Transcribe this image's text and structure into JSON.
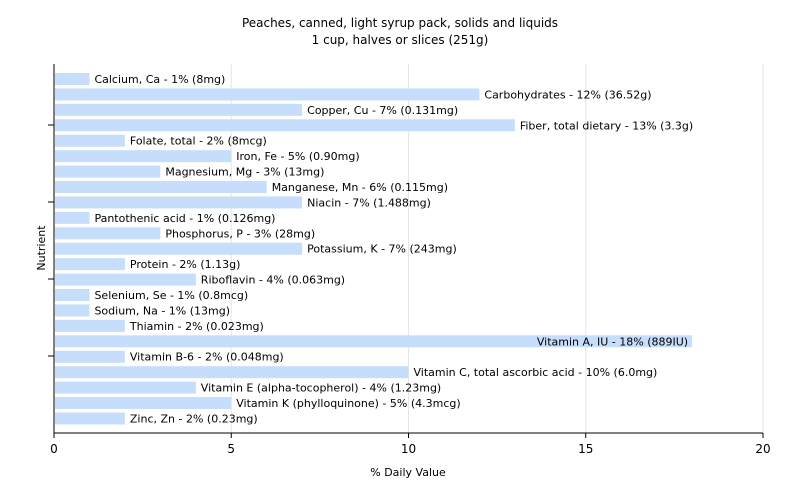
{
  "chart_data": {
    "type": "bar",
    "orientation": "horizontal",
    "title": "Peaches, canned, light syrup pack, solids and liquids",
    "subtitle": "1 cup, halves or slices (251g)",
    "xlabel": "% Daily Value",
    "ylabel": "Nutrient",
    "xlim": [
      0,
      20
    ],
    "xticks": [
      "0",
      "5",
      "10",
      "15",
      "20"
    ],
    "grid": true,
    "bar_color": "#c6defb",
    "categories": [
      "Calcium, Ca",
      "Carbohydrates",
      "Copper, Cu",
      "Fiber, total dietary",
      "Folate, total",
      "Iron, Fe",
      "Magnesium, Mg",
      "Manganese, Mn",
      "Niacin",
      "Pantothenic acid",
      "Phosphorus, P",
      "Potassium, K",
      "Protein",
      "Riboflavin",
      "Selenium, Se",
      "Sodium, Na",
      "Thiamin",
      "Vitamin A, IU",
      "Vitamin B-6",
      "Vitamin C, total ascorbic acid",
      "Vitamin E (alpha-tocopherol)",
      "Vitamin K (phylloquinone)",
      "Zinc, Zn"
    ],
    "values": [
      1,
      12,
      7,
      13,
      2,
      5,
      3,
      6,
      7,
      1,
      3,
      7,
      2,
      4,
      1,
      1,
      2,
      18,
      2,
      10,
      4,
      5,
      2
    ],
    "labels": [
      "Calcium, Ca - 1% (8mg)",
      "Carbohydrates - 12% (36.52g)",
      "Copper, Cu - 7% (0.131mg)",
      "Fiber, total dietary - 13% (3.3g)",
      "Folate, total - 2% (8mcg)",
      "Iron, Fe - 5% (0.90mg)",
      "Magnesium, Mg - 3% (13mg)",
      "Manganese, Mn - 6% (0.115mg)",
      "Niacin - 7% (1.488mg)",
      "Pantothenic acid - 1% (0.126mg)",
      "Phosphorus, P - 3% (28mg)",
      "Potassium, K - 7% (243mg)",
      "Protein - 2% (1.13g)",
      "Riboflavin - 4% (0.063mg)",
      "Selenium, Se - 1% (0.8mcg)",
      "Sodium, Na - 1% (13mg)",
      "Thiamin - 2% (0.023mg)",
      "Vitamin A, IU - 18% (889IU)",
      "Vitamin B-6 - 2% (0.048mg)",
      "Vitamin C, total ascorbic acid - 10% (6.0mg)",
      "Vitamin E (alpha-tocopherol) - 4% (1.23mg)",
      "Vitamin K (phylloquinone) - 5% (4.3mcg)",
      "Zinc, Zn - 2% (0.23mg)"
    ]
  }
}
